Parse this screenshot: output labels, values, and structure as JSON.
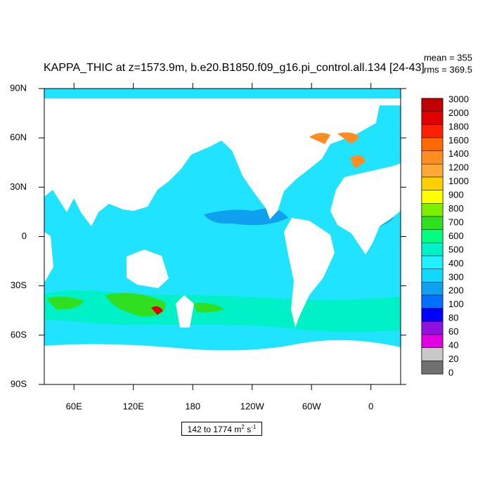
{
  "title": "KAPPA_THIC at z=1573.9m, b.e20.B1850.f09_g16.pi_control.all.134 [24-43]",
  "stats": {
    "mean": "mean = 355",
    "rms": "rms = 369.5"
  },
  "map": {
    "xlim": [
      30,
      390
    ],
    "ylim": [
      -90,
      90
    ],
    "xticks": [
      {
        "value": 60,
        "label": "60E"
      },
      {
        "value": 120,
        "label": "120E"
      },
      180,
      {
        "value": 240,
        "label": "120W"
      },
      {
        "value": 300,
        "label": "60W"
      },
      {
        "value": 360,
        "label": "0"
      }
    ],
    "yticks": [
      {
        "value": 90,
        "label": "90N"
      },
      {
        "value": 60,
        "label": "60N"
      },
      {
        "value": 30,
        "label": "30N"
      },
      0,
      {
        "value": -30,
        "label": "30S"
      },
      {
        "value": -60,
        "label": "60S"
      },
      {
        "value": -90,
        "label": "90S"
      }
    ]
  },
  "colorbar": {
    "levels": [
      3000,
      2000,
      1800,
      1600,
      1400,
      1200,
      1000,
      900,
      800,
      700,
      600,
      500,
      400,
      300,
      200,
      100,
      80,
      60,
      40,
      20,
      0
    ],
    "colors": [
      "#c00000",
      "#e00000",
      "#ff2000",
      "#ff6a00",
      "#ff8c20",
      "#ffa838",
      "#ffd000",
      "#ffff00",
      "#7cf000",
      "#30e020",
      "#00ff80",
      "#00f0c8",
      "#20f0ff",
      "#10d8ff",
      "#10a0f0",
      "#0070ff",
      "#0000ff",
      "#9010e0",
      "#e000e0",
      "#c8c8c8",
      "#707070"
    ]
  },
  "range_label": {
    "text": "142 to 1774 m",
    "exp1": "2",
    "unit2": " s",
    "exp2": "-1"
  }
}
